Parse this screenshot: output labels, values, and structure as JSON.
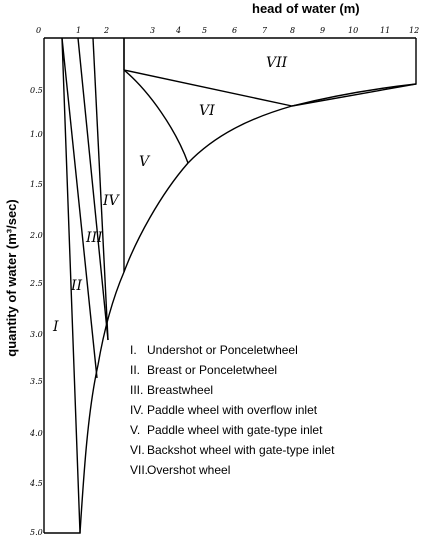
{
  "x_axis": {
    "label": "head of water (m)",
    "ticks": [
      "0",
      "1",
      "2",
      "3",
      "4",
      "5",
      "6",
      "7",
      "8",
      "9",
      "10",
      "11",
      "12"
    ]
  },
  "y_axis": {
    "label": "quantity of water (m³/sec)",
    "ticks": [
      "0.5",
      "1.0",
      "1.5",
      "2.0",
      "2.5",
      "3.0",
      "3.5",
      "4.0",
      "4.5",
      "5.0"
    ]
  },
  "regions": [
    "I",
    "II",
    "III",
    "IV",
    "V",
    "VI",
    "VII"
  ],
  "legend": [
    {
      "numeral": "I.",
      "text": "Undershot or Ponceletwheel"
    },
    {
      "numeral": "II.",
      "text": "Breast or Ponceletwheel"
    },
    {
      "numeral": "III.",
      "text": "Breastwheel"
    },
    {
      "numeral": "IV.",
      "text": "Paddle wheel with overflow inlet"
    },
    {
      "numeral": "V.",
      "text": "Paddle wheel with gate-type inlet"
    },
    {
      "numeral": "VI.",
      "text": "Backshot wheel with gate-type inlet"
    },
    {
      "numeral": "VII.",
      "text": "Overshot wheel"
    }
  ]
}
